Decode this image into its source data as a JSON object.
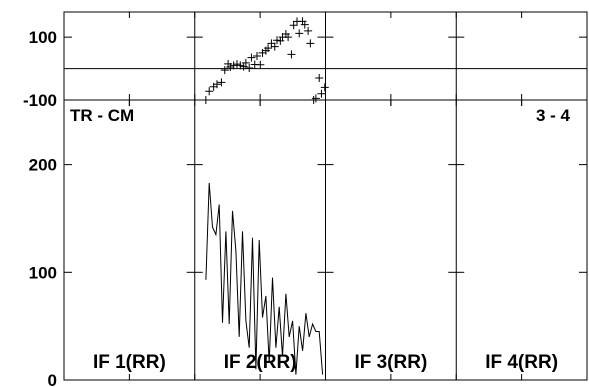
{
  "chart_data": {
    "type": "line",
    "baseline_label": "TR - CM",
    "baseline_index": "3 - 4",
    "panels": [
      {
        "label": "IF 1(RR)"
      },
      {
        "label": "IF 2(RR)"
      },
      {
        "label": "IF 3(RR)"
      },
      {
        "label": "IF 4(RR)"
      }
    ],
    "phase": {
      "ylim": [
        -100,
        180
      ],
      "yticks": [
        -100,
        100
      ],
      "zero_line": 0,
      "points": [
        {
          "x": 0.1,
          "y": -100
        },
        {
          "x": 0.13,
          "y": -72
        },
        {
          "x": 0.17,
          "y": -58
        },
        {
          "x": 0.2,
          "y": -50
        },
        {
          "x": 0.24,
          "y": -44
        },
        {
          "x": 0.27,
          "y": -5
        },
        {
          "x": 0.3,
          "y": 15
        },
        {
          "x": 0.32,
          "y": 5
        },
        {
          "x": 0.35,
          "y": 10
        },
        {
          "x": 0.38,
          "y": 14
        },
        {
          "x": 0.41,
          "y": 10
        },
        {
          "x": 0.44,
          "y": 6
        },
        {
          "x": 0.46,
          "y": 18
        },
        {
          "x": 0.49,
          "y": 2
        },
        {
          "x": 0.51,
          "y": 35
        },
        {
          "x": 0.54,
          "y": 13
        },
        {
          "x": 0.56,
          "y": 40
        },
        {
          "x": 0.59,
          "y": 12
        },
        {
          "x": 0.61,
          "y": 50
        },
        {
          "x": 0.64,
          "y": 57
        },
        {
          "x": 0.66,
          "y": 65
        },
        {
          "x": 0.69,
          "y": 80
        },
        {
          "x": 0.72,
          "y": 70
        },
        {
          "x": 0.74,
          "y": 90
        },
        {
          "x": 0.77,
          "y": 88
        },
        {
          "x": 0.79,
          "y": 100
        },
        {
          "x": 0.82,
          "y": 110
        },
        {
          "x": 0.84,
          "y": 100
        },
        {
          "x": 0.87,
          "y": 45
        },
        {
          "x": 0.89,
          "y": 138
        },
        {
          "x": 0.92,
          "y": 150
        },
        {
          "x": 0.94,
          "y": 112
        },
        {
          "x": 0.97,
          "y": 150
        },
        {
          "x": 0.99,
          "y": 140
        },
        {
          "x": 1.02,
          "y": 120
        },
        {
          "x": 1.04,
          "y": 80
        },
        {
          "x": 1.07,
          "y": -100
        },
        {
          "x": 1.09,
          "y": -95
        },
        {
          "x": 1.12,
          "y": -30
        },
        {
          "x": 1.14,
          "y": -80
        },
        {
          "x": 1.17,
          "y": -60
        }
      ]
    },
    "amplitude": {
      "ylim": [
        0,
        260
      ],
      "yticks": [
        0,
        100,
        200
      ],
      "x": [
        0.1,
        0.13,
        0.16,
        0.19,
        0.22,
        0.25,
        0.28,
        0.31,
        0.34,
        0.37,
        0.4,
        0.43,
        0.46,
        0.49,
        0.52,
        0.55,
        0.58,
        0.61,
        0.64,
        0.67,
        0.7,
        0.73,
        0.76,
        0.79,
        0.82,
        0.85,
        0.88,
        0.91,
        0.94,
        0.97,
        1.0,
        1.03,
        1.06,
        1.09,
        1.12,
        1.15
      ],
      "y": [
        93,
        183,
        142,
        135,
        163,
        53,
        138,
        52,
        157,
        120,
        40,
        138,
        55,
        30,
        132,
        10,
        130,
        58,
        78,
        16,
        95,
        30,
        68,
        22,
        80,
        40,
        55,
        5,
        50,
        27,
        62,
        40,
        52,
        45,
        45,
        5
      ]
    }
  }
}
